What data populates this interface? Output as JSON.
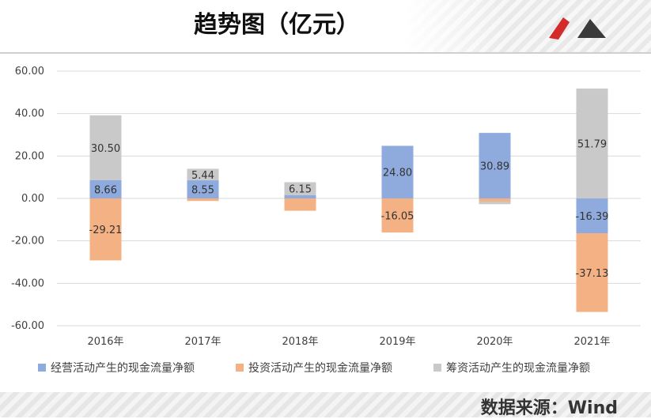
{
  "title": "趋势图（亿元）",
  "source": "数据来源：Wind",
  "chart_data": {
    "type": "bar",
    "stacked": true,
    "categories": [
      "2016年",
      "2017年",
      "2018年",
      "2019年",
      "2020年",
      "2021年"
    ],
    "ylim": [
      -60,
      60
    ],
    "yticks": [
      "60.00",
      "40.00",
      "20.00",
      "0.00",
      "-20.00",
      "-40.00",
      "-60.00"
    ],
    "grid": true,
    "legend": "bottom",
    "series": [
      {
        "name": "经营活动产生的现金流量净额",
        "color": "#8faadc",
        "values": [
          8.66,
          8.55,
          1.5,
          24.8,
          30.89,
          -16.39
        ],
        "labels": [
          "8.66",
          "8.55",
          "",
          "24.80",
          "30.89",
          "-16.39"
        ]
      },
      {
        "name": "投资活动产生的现金流量净额",
        "color": "#f4b183",
        "values": [
          -29.21,
          -1.2,
          -5.8,
          -16.05,
          -1.5,
          -37.13
        ],
        "labels": [
          "-29.21",
          "",
          "",
          "-16.05",
          "",
          "-37.13"
        ]
      },
      {
        "name": "筹资活动产生的现金流量净额",
        "color": "#c9c9c9",
        "values": [
          30.5,
          5.44,
          6.15,
          0,
          -1.2,
          51.79
        ],
        "labels": [
          "30.50",
          "5.44",
          "6.15",
          "",
          "",
          "51.79"
        ]
      }
    ]
  }
}
